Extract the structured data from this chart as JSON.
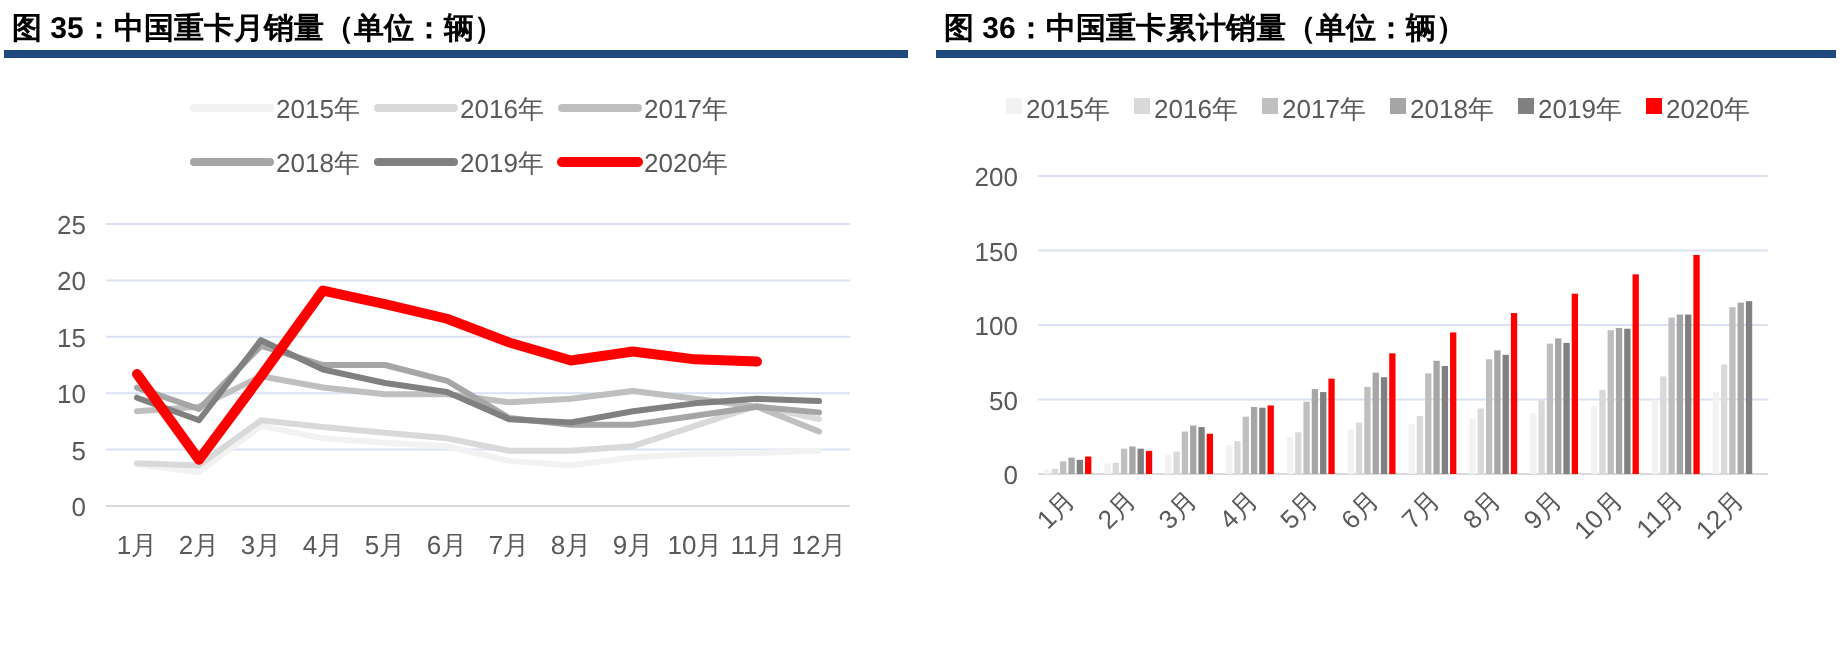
{
  "chart_data": [
    {
      "type": "line",
      "title": "图 35：中国重卡月销量（单位：辆）",
      "categories": [
        "1月",
        "2月",
        "3月",
        "4月",
        "5月",
        "6月",
        "7月",
        "8月",
        "9月",
        "10月",
        "11月",
        "12月"
      ],
      "ylim": [
        0,
        25
      ],
      "yticks": [
        0,
        5,
        10,
        15,
        20,
        25
      ],
      "grid": "y",
      "legend": "top",
      "marker": "none",
      "line_style": "solid",
      "series": [
        {
          "name": "2015年",
          "color": "#f2f2f2",
          "values": [
            3.7,
            3.0,
            7.1,
            6.0,
            5.6,
            5.3,
            4.0,
            3.6,
            4.3,
            4.6,
            4.7,
            4.9
          ]
        },
        {
          "name": "2016年",
          "color": "#d9d9d9",
          "values": [
            3.8,
            3.6,
            7.6,
            7.0,
            6.5,
            6.0,
            4.9,
            4.9,
            5.3,
            7.1,
            8.9,
            7.7
          ]
        },
        {
          "name": "2017年",
          "color": "#bfbfbf",
          "values": [
            8.4,
            8.8,
            11.5,
            10.5,
            9.9,
            9.9,
            9.2,
            9.5,
            10.2,
            9.5,
            8.8,
            6.6
          ]
        },
        {
          "name": "2018年",
          "color": "#a6a6a6",
          "values": [
            10.5,
            8.6,
            14.2,
            12.5,
            12.5,
            11.1,
            7.8,
            7.2,
            7.2,
            8.0,
            8.8,
            8.3
          ]
        },
        {
          "name": "2019年",
          "color": "#808080",
          "values": [
            9.6,
            7.6,
            14.7,
            12.1,
            10.9,
            10.1,
            7.7,
            7.4,
            8.4,
            9.1,
            9.5,
            9.3
          ]
        },
        {
          "name": "2020年",
          "color": "#ff0000",
          "values": [
            11.7,
            4.1,
            11.5,
            19.1,
            17.9,
            16.6,
            14.5,
            12.9,
            13.7,
            13.0,
            12.8,
            null
          ]
        }
      ]
    },
    {
      "type": "bar",
      "title": "图 36：中国重卡累计销量（单位：辆）",
      "categories": [
        "1月",
        "2月",
        "3月",
        "4月",
        "5月",
        "6月",
        "7月",
        "8月",
        "9月",
        "10月",
        "11月",
        "12月"
      ],
      "ylim": [
        0,
        200
      ],
      "yticks": [
        0,
        50,
        100,
        150,
        200
      ],
      "grid": "y",
      "legend": "top",
      "series": [
        {
          "name": "2015年",
          "color": "#f2f2f2",
          "values": [
            3,
            7,
            13,
            19.5,
            25,
            30,
            33.5,
            37,
            41,
            45.5,
            50,
            55
          ]
        },
        {
          "name": "2016年",
          "color": "#d9d9d9",
          "values": [
            3.5,
            7.5,
            15,
            22,
            28,
            34.5,
            39,
            44,
            49.5,
            56.5,
            65.5,
            73.5
          ]
        },
        {
          "name": "2017年",
          "color": "#bfbfbf",
          "values": [
            8.5,
            17,
            28.5,
            38.5,
            48.5,
            58.5,
            67.5,
            77,
            87.5,
            96.5,
            105,
            112
          ]
        },
        {
          "name": "2018年",
          "color": "#a6a6a6",
          "values": [
            11,
            18.5,
            32.5,
            45,
            57,
            68,
            76,
            83,
            91,
            98,
            107,
            115
          ]
        },
        {
          "name": "2019年",
          "color": "#808080",
          "values": [
            9.5,
            17,
            31.5,
            44.5,
            55,
            65,
            72.5,
            80,
            88,
            97.5,
            107,
            116
          ]
        },
        {
          "name": "2020年",
          "color": "#ff0000",
          "values": [
            11.7,
            15.5,
            27,
            46,
            64,
            81,
            95,
            108,
            121,
            134,
            147,
            null
          ]
        }
      ]
    }
  ]
}
